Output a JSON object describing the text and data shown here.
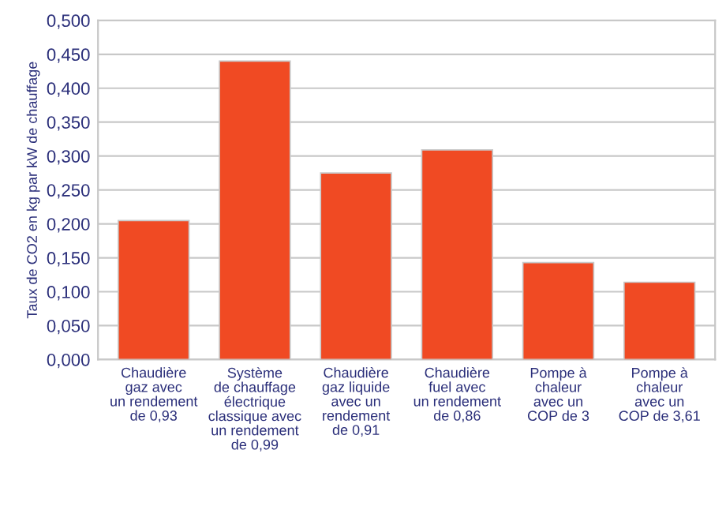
{
  "chart_data": {
    "type": "bar",
    "ylabel": "Taux de CO2 en kg par kW de chauffage",
    "categories": [
      "Chaudière\ngaz avec\nun rendement\nde 0,93",
      "Système\nde chauffage\nélectrique\nclassique avec\nun rendement\nde 0,99",
      "Chaudière\ngaz liquide\navec un\nrendement\nde 0,91",
      "Chaudière\nfuel avec\nun rendement\nde 0,86",
      "Pompe à\nchaleur\navec un\nCOP de 3",
      "Pompe à\nchaleur\navec un\nCOP de 3,61"
    ],
    "values": [
      0.205,
      0.44,
      0.275,
      0.309,
      0.143,
      0.114
    ],
    "color": "#f04a23",
    "ylim": [
      0,
      0.5
    ],
    "yticks": [
      {
        "value": 0,
        "label": "0,000"
      },
      {
        "value": 0.05,
        "label": "0,050"
      },
      {
        "value": 0.1,
        "label": "0,100"
      },
      {
        "value": 0.15,
        "label": "0,150"
      },
      {
        "value": 0.2,
        "label": "0,200"
      },
      {
        "value": 0.25,
        "label": "0,250"
      },
      {
        "value": 0.3,
        "label": "0,300"
      },
      {
        "value": 0.35,
        "label": "0,350"
      },
      {
        "value": 0.4,
        "label": "0,400"
      },
      {
        "value": 0.45,
        "label": "0,450"
      },
      {
        "value": 0.5,
        "label": "0,500"
      }
    ],
    "grid": "y"
  }
}
